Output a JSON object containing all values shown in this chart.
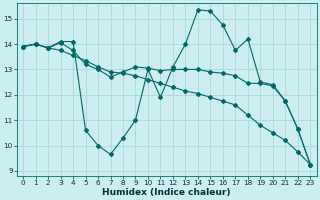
{
  "xlabel": "Humidex (Indice chaleur)",
  "bg_color": "#cceef0",
  "grid_color": "#aad8dc",
  "line_color": "#006868",
  "xlim": [
    -0.5,
    23.5
  ],
  "ylim": [
    8.8,
    15.6
  ],
  "yticks": [
    9,
    10,
    11,
    12,
    13,
    14,
    15
  ],
  "xticks": [
    0,
    1,
    2,
    3,
    4,
    5,
    6,
    7,
    8,
    9,
    10,
    11,
    12,
    13,
    14,
    15,
    16,
    17,
    18,
    19,
    20,
    21,
    22,
    23
  ],
  "line1_x": [
    0,
    1,
    2,
    3,
    4,
    5,
    6,
    7,
    8,
    9,
    10,
    11,
    12,
    13,
    14,
    15,
    16,
    17,
    18,
    19,
    20,
    21,
    22,
    23
  ],
  "line1_y": [
    13.9,
    14.0,
    13.85,
    14.1,
    14.1,
    10.6,
    10.0,
    9.65,
    10.3,
    11.0,
    13.0,
    11.9,
    13.1,
    14.0,
    15.35,
    15.3,
    14.75,
    13.75,
    14.2,
    12.5,
    12.4,
    11.75,
    10.65,
    9.25
  ],
  "line2_x": [
    0,
    1,
    2,
    3,
    4,
    5,
    6,
    7,
    8,
    9,
    10,
    11,
    12,
    13,
    14,
    15,
    16,
    17,
    18,
    19,
    20,
    21,
    22,
    23
  ],
  "line2_y": [
    13.9,
    14.0,
    13.85,
    13.75,
    13.55,
    13.35,
    13.1,
    12.9,
    12.85,
    12.75,
    12.6,
    12.45,
    12.3,
    12.15,
    12.05,
    11.9,
    11.75,
    11.6,
    11.2,
    10.8,
    10.5,
    10.2,
    9.75,
    9.25
  ],
  "line3_x": [
    0,
    1,
    2,
    3,
    4,
    5,
    6,
    7,
    8,
    9,
    10,
    11,
    12,
    13,
    14,
    15,
    16,
    17,
    18,
    19,
    20,
    21,
    22,
    23
  ],
  "line3_y": [
    13.9,
    14.0,
    13.85,
    14.05,
    13.75,
    13.2,
    13.0,
    12.7,
    12.9,
    13.1,
    13.05,
    12.95,
    13.0,
    13.0,
    13.0,
    12.9,
    12.85,
    12.75,
    12.45,
    12.45,
    12.35,
    11.75,
    10.65,
    9.25
  ]
}
